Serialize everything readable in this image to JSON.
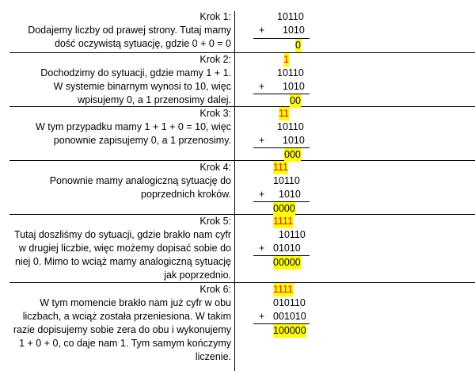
{
  "steps": [
    {
      "title": "Krok 1:",
      "lines": [
        "Dodajemy liczby od prawej strony. Tutaj mamy",
        "dość oczywistą sytuację, gdzie 0 + 0 = 0"
      ],
      "carry": "",
      "a": "10110",
      "b": "1010",
      "result": "0"
    },
    {
      "title": "Krok 2:",
      "lines": [
        "Dochodzimy do sytuacji, gdzie mamy 1 + 1.",
        "W systemie binarnym wynosi to 10, więc",
        "wpisujemy 0, a 1 przenosimy dalej."
      ],
      "carry": "1",
      "a": "10110",
      "b": "1010",
      "result": "00"
    },
    {
      "title": "Krok 3:",
      "lines": [
        "W tym przypadku mamy 1 + 1 + 0 = 10, więc",
        "ponownie zapisujemy 0, a 1 przenosimy."
      ],
      "carry": "11",
      "a": "10110",
      "b": "1010",
      "result": "000"
    },
    {
      "title": "Krok 4:",
      "lines": [
        "Ponownie mamy analogiczną sytuację do",
        "poprzednich kroków."
      ],
      "carry": "111",
      "a": "10110",
      "b": "1010",
      "result": "0000"
    },
    {
      "title": "Krok 5:",
      "lines": [
        "Tutaj doszliśmy do sytuacji, gdzie brakło nam cyfr",
        "w drugiej liczbie, więc możemy dopisać sobie do",
        "niej 0. Mimo to wciąż mamy analogiczną sytuację",
        "jak poprzednio."
      ],
      "carry": "1111",
      "a": "10110",
      "b": "01010",
      "result": "00000"
    },
    {
      "title": "Krok 6:",
      "lines": [
        "W tym momencie brakło nam już cyfr w obu",
        "liczbach, a wciąż została przeniesiona. W takim",
        "razie dopisujemy sobie zera do obu i wykonujemy",
        "1 + 0 + 0, co daje nam 1. Tym samym kończymy",
        "liczenie."
      ],
      "carry": "1111",
      "a": "010110",
      "b": "001010",
      "result": "100000"
    }
  ],
  "plus_sign": "+",
  "colors": {
    "highlight": "#ffff00",
    "carry": "#ff0000"
  }
}
